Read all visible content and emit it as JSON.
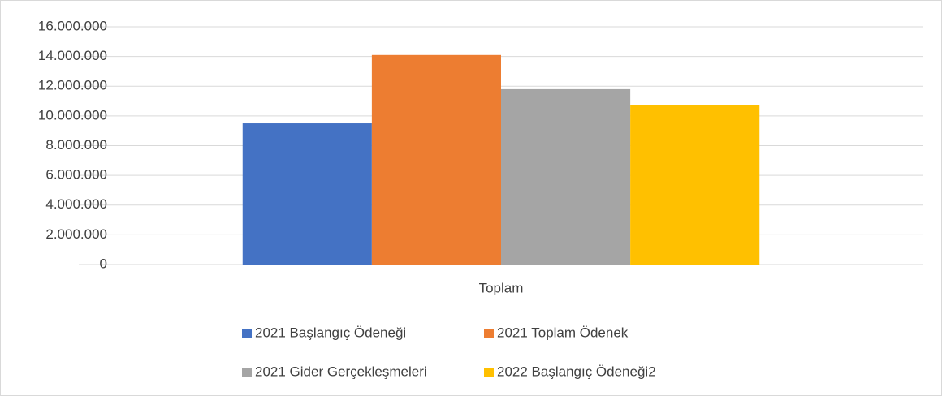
{
  "chart_data": {
    "type": "bar",
    "categories": [
      "Toplam"
    ],
    "series": [
      {
        "name": "2021 Başlangıç Ödeneği",
        "color": "#4472c4",
        "values": [
          9500000
        ]
      },
      {
        "name": "2021 Toplam Ödenek",
        "color": "#ed7d31",
        "values": [
          14100000
        ]
      },
      {
        "name": "2021 Gider Gerçekleşmeleri",
        "color": "#a5a5a5",
        "values": [
          11800000
        ]
      },
      {
        "name": "2022 Başlangıç Ödeneği2",
        "color": "#ffc000",
        "values": [
          10750000
        ]
      }
    ],
    "ylim": [
      0,
      16000000
    ],
    "yticks": [
      0,
      {
        "value": 2000000,
        "label": "2.000.000"
      },
      {
        "value": 4000000,
        "label": "4.000.000"
      },
      {
        "value": 6000000,
        "label": "6.000.000"
      },
      {
        "value": 8000000,
        "label": "8.000.000"
      },
      {
        "value": 10000000,
        "label": "10.000.000"
      },
      {
        "value": 12000000,
        "label": "12.000.000"
      },
      {
        "value": 14000000,
        "label": "14.000.000"
      },
      {
        "value": 16000000,
        "label": "16.000.000"
      }
    ],
    "grid": true,
    "legend": "bottom"
  }
}
